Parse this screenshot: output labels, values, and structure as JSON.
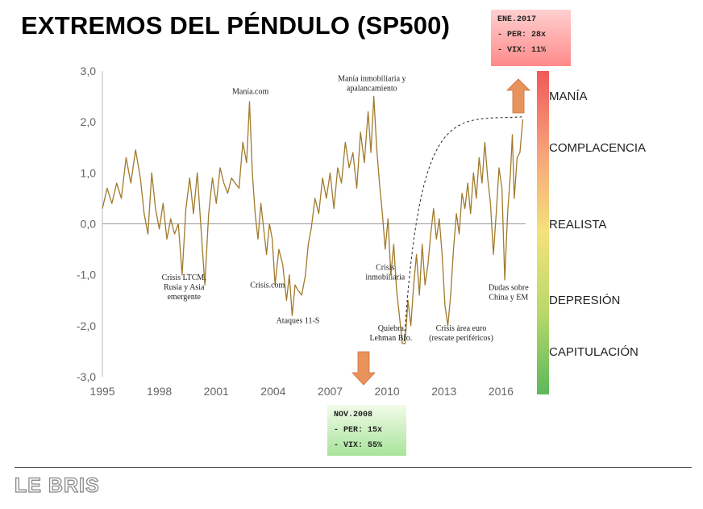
{
  "title": "EXTREMOS DEL PÉNDULO (SP500)",
  "logo": "LE BRIS",
  "boxes": {
    "top": {
      "lines": [
        "ENE.2017",
        "- PER: 28x",
        "- VIX: 11%"
      ]
    },
    "bottom": {
      "lines": [
        "NOV.2008",
        "- PER: 15x",
        "- VIX: 55%"
      ]
    }
  },
  "colors": {
    "line": "#a07a2c",
    "arrow": "#e8935c",
    "top_box": "#ff8a8a",
    "bottom_box": "#a8e49a"
  },
  "chart_data": {
    "type": "line",
    "xlim": [
      1995,
      2017.3
    ],
    "ylim": [
      -3,
      3
    ],
    "yticks": [
      "3,0",
      "2,0",
      "1,0",
      "0,0",
      "-1,0",
      "-2,0",
      "-3,0"
    ],
    "xticks": [
      "1995",
      "1998",
      "2001",
      "2004",
      "2007",
      "2010",
      "2013",
      "2016"
    ],
    "series": [
      {
        "values": [
          [
            1995.0,
            0.3
          ],
          [
            1995.25,
            0.7
          ],
          [
            1995.5,
            0.4
          ],
          [
            1995.75,
            0.8
          ],
          [
            1996.0,
            0.5
          ],
          [
            1996.25,
            1.3
          ],
          [
            1996.5,
            0.8
          ],
          [
            1996.75,
            1.45
          ],
          [
            1997.0,
            0.9
          ],
          [
            1997.2,
            0.2
          ],
          [
            1997.4,
            -0.2
          ],
          [
            1997.6,
            1.0
          ],
          [
            1997.8,
            0.3
          ],
          [
            1998.0,
            -0.1
          ],
          [
            1998.2,
            0.4
          ],
          [
            1998.4,
            -0.3
          ],
          [
            1998.6,
            0.1
          ],
          [
            1998.8,
            -0.2
          ],
          [
            1999.0,
            0.0
          ],
          [
            1999.2,
            -1.0
          ],
          [
            1999.4,
            0.3
          ],
          [
            1999.6,
            0.9
          ],
          [
            1999.8,
            0.2
          ],
          [
            2000.0,
            1.0
          ],
          [
            2000.2,
            -0.1
          ],
          [
            2000.4,
            -1.2
          ],
          [
            2000.6,
            0.2
          ],
          [
            2000.8,
            0.9
          ],
          [
            2001.0,
            0.4
          ],
          [
            2001.2,
            1.1
          ],
          [
            2001.4,
            0.8
          ],
          [
            2001.6,
            0.6
          ],
          [
            2001.8,
            0.9
          ],
          [
            2002.0,
            0.8
          ],
          [
            2002.2,
            0.7
          ],
          [
            2002.4,
            1.6
          ],
          [
            2002.6,
            1.2
          ],
          [
            2002.75,
            2.4
          ],
          [
            2002.9,
            1.0
          ],
          [
            2003.05,
            0.2
          ],
          [
            2003.2,
            -0.3
          ],
          [
            2003.35,
            0.4
          ],
          [
            2003.5,
            -0.1
          ],
          [
            2003.65,
            -0.6
          ],
          [
            2003.8,
            0.0
          ],
          [
            2003.95,
            -0.3
          ],
          [
            2004.1,
            -1.2
          ],
          [
            2004.3,
            -0.5
          ],
          [
            2004.5,
            -0.8
          ],
          [
            2004.7,
            -1.5
          ],
          [
            2004.85,
            -1.0
          ],
          [
            2005.0,
            -1.8
          ],
          [
            2005.15,
            -1.2
          ],
          [
            2005.3,
            -1.3
          ],
          [
            2005.5,
            -1.4
          ],
          [
            2005.7,
            -1.0
          ],
          [
            2005.85,
            -0.4
          ],
          [
            2006.0,
            -0.1
          ],
          [
            2006.2,
            0.5
          ],
          [
            2006.4,
            0.2
          ],
          [
            2006.6,
            0.9
          ],
          [
            2006.8,
            0.5
          ],
          [
            2007.0,
            1.0
          ],
          [
            2007.2,
            0.3
          ],
          [
            2007.4,
            1.1
          ],
          [
            2007.6,
            0.8
          ],
          [
            2007.8,
            1.6
          ],
          [
            2008.0,
            1.1
          ],
          [
            2008.2,
            1.4
          ],
          [
            2008.4,
            0.7
          ],
          [
            2008.6,
            1.8
          ],
          [
            2008.8,
            1.2
          ],
          [
            2009.0,
            2.2
          ],
          [
            2009.15,
            1.4
          ],
          [
            2009.3,
            2.5
          ],
          [
            2009.45,
            1.5
          ],
          [
            2009.6,
            0.8
          ],
          [
            2009.75,
            0.2
          ],
          [
            2009.9,
            -0.5
          ],
          [
            2010.05,
            0.1
          ],
          [
            2010.2,
            -1.0
          ],
          [
            2010.35,
            -0.4
          ],
          [
            2010.5,
            -1.3
          ],
          [
            2010.65,
            -1.8
          ],
          [
            2010.8,
            -2.35
          ],
          [
            2010.95,
            -2.35
          ],
          [
            2011.1,
            -1.5
          ],
          [
            2011.25,
            -2.0
          ],
          [
            2011.4,
            -1.2
          ],
          [
            2011.55,
            -0.6
          ],
          [
            2011.7,
            -1.4
          ],
          [
            2011.85,
            -0.4
          ],
          [
            2012.0,
            -1.2
          ],
          [
            2012.15,
            -0.8
          ],
          [
            2012.3,
            -0.2
          ],
          [
            2012.45,
            0.3
          ],
          [
            2012.6,
            -0.3
          ],
          [
            2012.75,
            0.1
          ],
          [
            2012.9,
            -0.6
          ],
          [
            2013.05,
            -1.6
          ],
          [
            2013.2,
            -2.0
          ],
          [
            2013.35,
            -1.4
          ],
          [
            2013.5,
            -0.5
          ],
          [
            2013.65,
            0.2
          ],
          [
            2013.8,
            -0.2
          ],
          [
            2013.95,
            0.6
          ],
          [
            2014.1,
            0.3
          ],
          [
            2014.25,
            0.8
          ],
          [
            2014.4,
            0.2
          ],
          [
            2014.55,
            1.0
          ],
          [
            2014.7,
            0.5
          ],
          [
            2014.85,
            1.3
          ],
          [
            2015.0,
            0.8
          ],
          [
            2015.15,
            1.6
          ],
          [
            2015.3,
            0.9
          ],
          [
            2015.45,
            0.4
          ],
          [
            2015.6,
            -0.6
          ],
          [
            2015.75,
            0.2
          ],
          [
            2015.9,
            1.1
          ],
          [
            2016.05,
            0.7
          ],
          [
            2016.2,
            -1.1
          ],
          [
            2016.35,
            0.2
          ],
          [
            2016.5,
            1.0
          ],
          [
            2016.6,
            1.75
          ],
          [
            2016.7,
            0.5
          ],
          [
            2016.85,
            1.3
          ],
          [
            2017.0,
            1.4
          ],
          [
            2017.15,
            2.05
          ]
        ]
      }
    ],
    "trend_curve": {
      "from": [
        2010.9,
        -2.3
      ],
      "to": [
        2017.1,
        2.1
      ]
    },
    "annotations": [
      {
        "lines": [
          "Manía.com"
        ],
        "x": 2002.8,
        "y": 2.55
      },
      {
        "lines": [
          "Manía inmobiliaria y",
          "apalancamiento"
        ],
        "x": 2009.2,
        "y": 2.8
      },
      {
        "lines": [
          "Crisis LTCM,",
          "Rusia y Asia",
          "emergente"
        ],
        "x": 1999.3,
        "y": -1.1
      },
      {
        "lines": [
          "Crisis.com"
        ],
        "x": 2003.7,
        "y": -1.25
      },
      {
        "lines": [
          "Ataques 11-S"
        ],
        "x": 2005.3,
        "y": -1.95
      },
      {
        "lines": [
          "Crisis",
          "inmobiliaria"
        ],
        "x": 2009.9,
        "y": -0.9
      },
      {
        "lines": [
          "Quiebra",
          "Lehman Bro."
        ],
        "x": 2010.2,
        "y": -2.1
      },
      {
        "lines": [
          "Crisis área euro",
          "(rescate periféricos)"
        ],
        "x": 2013.9,
        "y": -2.1
      },
      {
        "lines": [
          "Dudas sobre",
          "China y EM"
        ],
        "x": 2016.4,
        "y": -1.3
      }
    ],
    "zones": [
      "MANÍA",
      "COMPLACENCIA",
      "REALISTA",
      "DEPRESIÓN",
      "CAPITULACIÓN"
    ]
  }
}
